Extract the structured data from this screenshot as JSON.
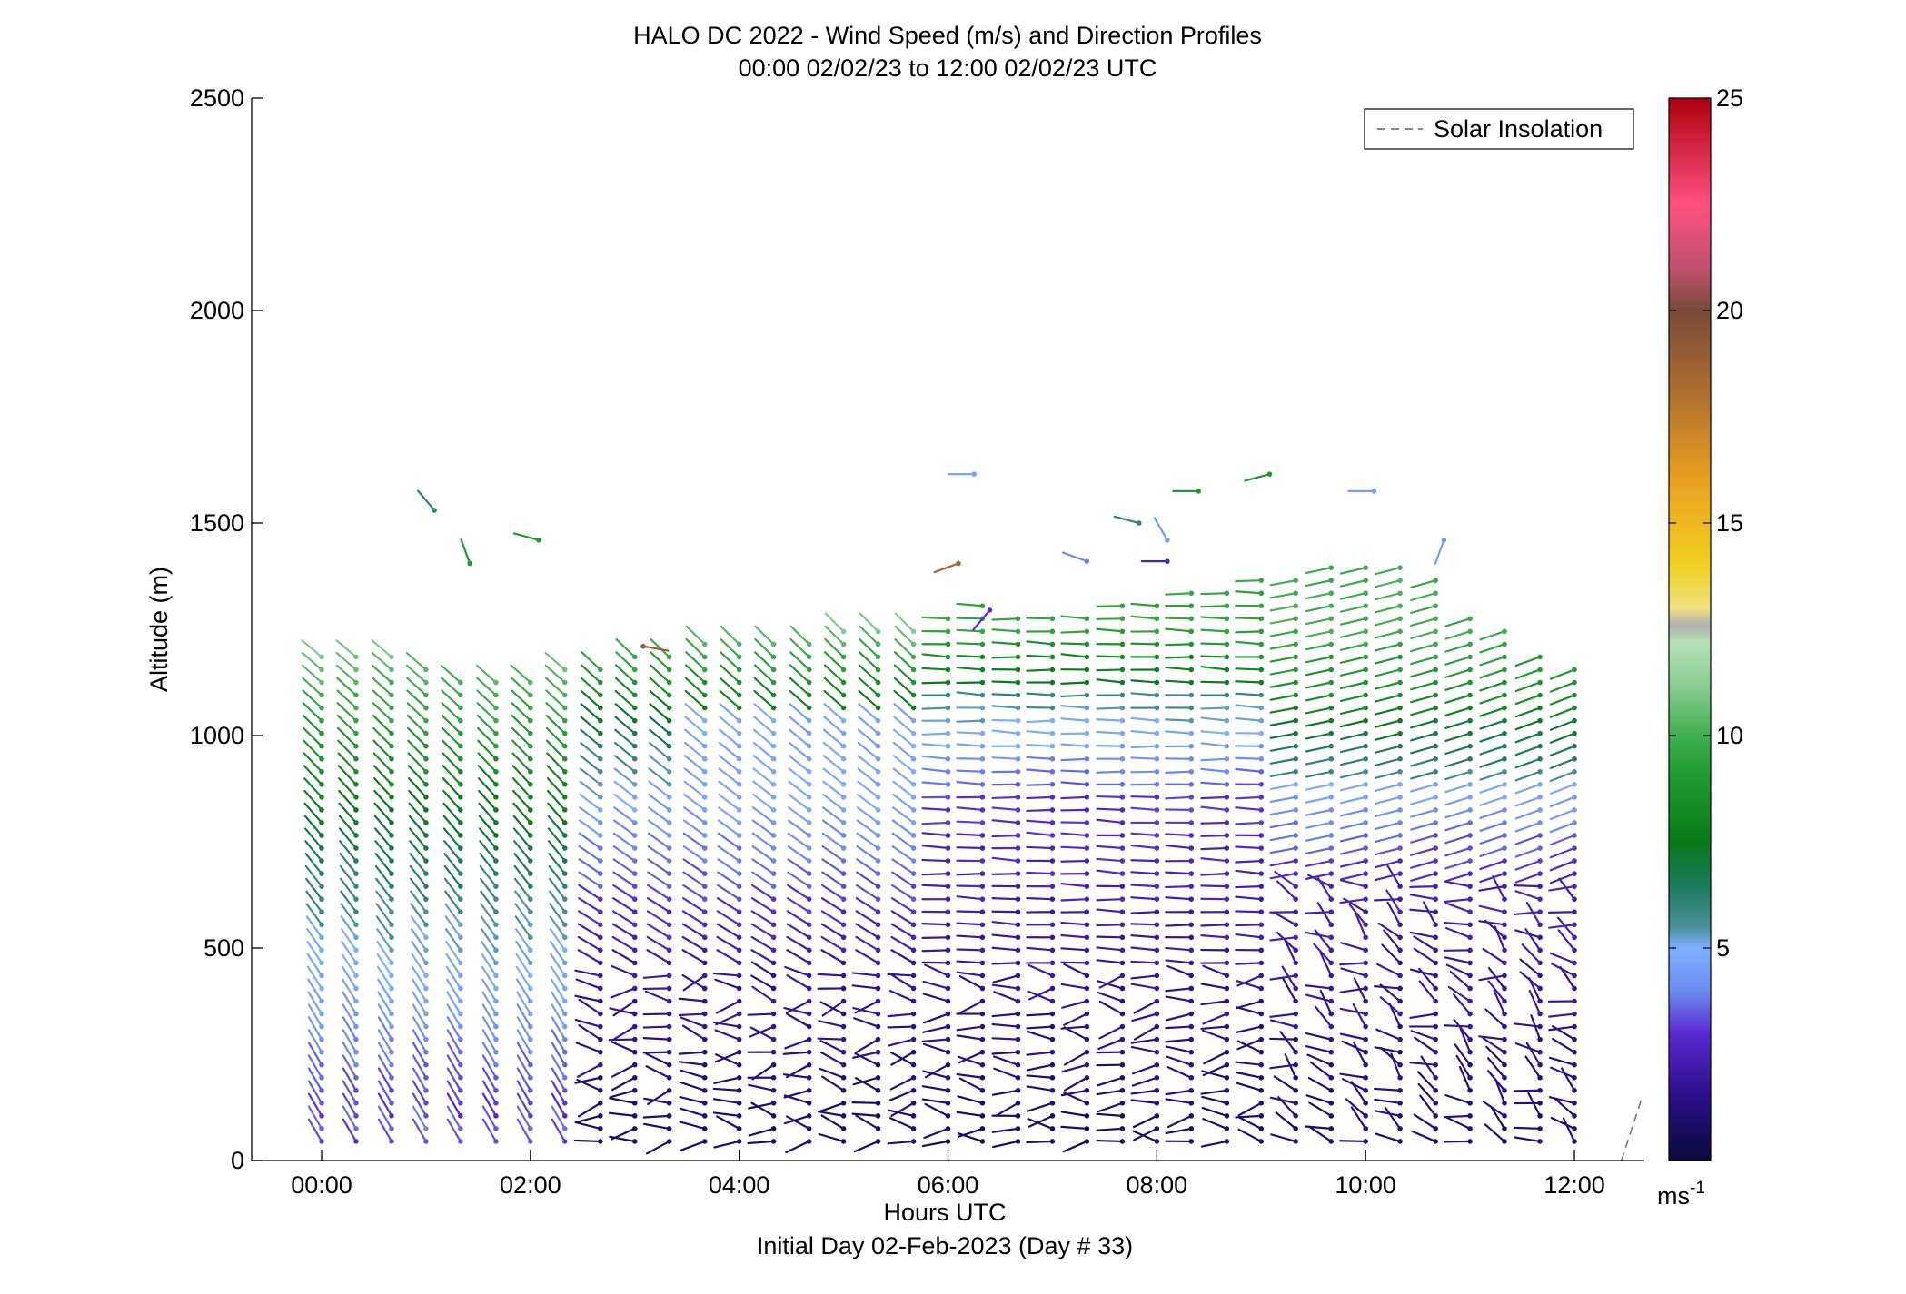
{
  "chart_data": {
    "type": "wind-barb-profile",
    "title": "HALO DC 2022 - Wind Speed (m/s) and Direction Profiles",
    "subtitle": "00:00 02/02/23 to 12:00 02/02/23  UTC",
    "xlabel": "Hours UTC",
    "xsublabel": "Initial Day 02-Feb-2023 (Day # 33)",
    "ylabel": "Altitude (m)",
    "xlim": [
      -0.67,
      12.67
    ],
    "ylim": [
      0,
      2500
    ],
    "xticks": [
      0,
      2,
      4,
      6,
      8,
      10,
      12
    ],
    "xticklabels": [
      "00:00",
      "02:00",
      "04:00",
      "06:00",
      "08:00",
      "10:00",
      "12:00"
    ],
    "yticks": [
      0,
      500,
      1000,
      1500,
      2000,
      2500
    ],
    "yticklabels": [
      "0",
      "500",
      "1000",
      "1500",
      "2000",
      "2500"
    ],
    "colorbar": {
      "unit_label": "ms",
      "unit_exponent": "-1",
      "range": [
        0,
        25
      ],
      "ticks": [
        5,
        10,
        15,
        20,
        25
      ],
      "ticklabels": [
        "5",
        "10",
        "15",
        "20",
        "25"
      ],
      "colors": [
        [
          0,
          "#0b0b3a"
        ],
        [
          1.5,
          "#2a0f8a"
        ],
        [
          3,
          "#5a2ad0"
        ],
        [
          4,
          "#6b8cf0"
        ],
        [
          5,
          "#7fb0ff"
        ],
        [
          5.5,
          "#4a8f9a"
        ],
        [
          6.5,
          "#1a7a5a"
        ],
        [
          7.5,
          "#0a7a1a"
        ],
        [
          9,
          "#1f9a2f"
        ],
        [
          10,
          "#3fae4f"
        ],
        [
          11,
          "#7fc98a"
        ],
        [
          12.2,
          "#b8e0b8"
        ],
        [
          12.6,
          "#b0b0b0"
        ],
        [
          13,
          "#f0e080"
        ],
        [
          14,
          "#f0d020"
        ],
        [
          16,
          "#e8a020"
        ],
        [
          18,
          "#b07030"
        ],
        [
          20,
          "#7a4a3a"
        ],
        [
          21,
          "#c05070"
        ],
        [
          22.5,
          "#ff5080"
        ],
        [
          25,
          "#b00010"
        ]
      ]
    },
    "legend": {
      "entries": [
        "Solar Insolation"
      ],
      "location": "top-right"
    },
    "solar_insolation": {
      "x": [
        12.45,
        12.65
      ],
      "y": [
        0,
        150
      ]
    },
    "profile_times": [
      0.0,
      0.33,
      0.67,
      1.0,
      1.33,
      1.67,
      2.0,
      2.33,
      2.67,
      3.0,
      3.33,
      3.67,
      4.0,
      4.33,
      4.67,
      5.0,
      5.33,
      5.67,
      6.0,
      6.33,
      6.67,
      7.0,
      7.33,
      7.67,
      8.0,
      8.33,
      8.67,
      9.0,
      9.33,
      9.67,
      10.0,
      10.33,
      10.67,
      11.0,
      11.33,
      11.67,
      12.0
    ],
    "profile_tops": [
      1210,
      1210,
      1190,
      1160,
      1130,
      1140,
      1150,
      1160,
      1170,
      1190,
      1210,
      1220,
      1220,
      1230,
      1230,
      1250,
      1260,
      1270,
      1300,
      1310,
      1300,
      1300,
      1290,
      1310,
      1320,
      1340,
      1350,
      1370,
      1390,
      1400,
      1410,
      1400,
      1390,
      1290,
      1260,
      1210,
      1160
    ],
    "level_spacing_m": 30,
    "isolated_barbs": [
      {
        "t": 1.08,
        "alt": 1530,
        "speed": 6,
        "dir": 320
      },
      {
        "t": 1.42,
        "alt": 1405,
        "speed": 9,
        "dir": 340
      },
      {
        "t": 2.08,
        "alt": 1460,
        "speed": 9,
        "dir": 285
      },
      {
        "t": 3.08,
        "alt": 1210,
        "speed": 19,
        "dir": 100
      },
      {
        "t": 6.25,
        "alt": 1615,
        "speed": 4.5,
        "dir": 270
      },
      {
        "t": 6.1,
        "alt": 1405,
        "speed": 18.5,
        "dir": 250
      },
      {
        "t": 7.33,
        "alt": 1410,
        "speed": 4,
        "dir": 290
      },
      {
        "t": 7.83,
        "alt": 1500,
        "speed": 6,
        "dir": 285
      },
      {
        "t": 8.1,
        "alt": 1460,
        "speed": 4.5,
        "dir": 330
      },
      {
        "t": 8.1,
        "alt": 1410,
        "speed": 2.5,
        "dir": 270
      },
      {
        "t": 8.4,
        "alt": 1575,
        "speed": 9,
        "dir": 270
      },
      {
        "t": 9.08,
        "alt": 1615,
        "speed": 9,
        "dir": 255
      },
      {
        "t": 10.08,
        "alt": 1575,
        "speed": 4.5,
        "dir": 270
      },
      {
        "t": 10.75,
        "alt": 1460,
        "speed": 4.5,
        "dir": 200
      },
      {
        "t": 6.4,
        "alt": 1295,
        "speed": 3,
        "dir": 220
      }
    ]
  }
}
